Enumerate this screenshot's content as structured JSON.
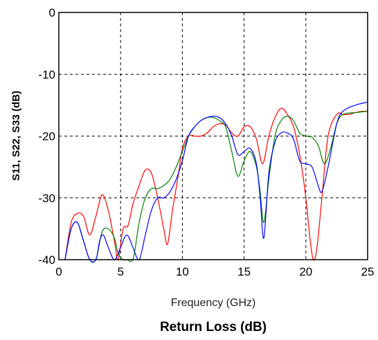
{
  "chart_data": {
    "type": "line",
    "title": "Return Loss (dB)",
    "xlabel": "Frequency (GHz)",
    "ylabel": "S11, S22, S33 (dB)",
    "xlim": [
      0,
      25
    ],
    "ylim": [
      -40,
      0
    ],
    "xticks": [
      "0",
      "5",
      "10",
      "15",
      "20",
      "25"
    ],
    "yticks": [
      "0",
      "-10",
      "-20",
      "-30",
      "-40"
    ],
    "grid": true,
    "legend": "none",
    "series": [
      {
        "color": "#ff0000",
        "x": [
          0.5,
          1.0,
          1.5,
          2.0,
          2.5,
          3.0,
          3.5,
          4.0,
          4.5,
          4.8,
          5.2,
          5.6,
          6.0,
          6.5,
          7.0,
          7.5,
          8.0,
          8.5,
          8.8,
          9.2,
          9.7,
          10.0,
          10.5,
          11.0,
          11.5,
          12.0,
          12.5,
          13.0,
          13.5,
          14.0,
          14.5,
          15.0,
          15.5,
          16.0,
          16.5,
          17.0,
          17.5,
          18.0,
          18.5,
          19.0,
          19.5,
          20.0,
          20.3,
          20.6,
          20.9,
          21.3,
          21.8,
          22.5,
          23.0,
          23.5,
          24.0,
          24.5,
          25.0
        ],
        "y": [
          -40,
          -34,
          -32.5,
          -33,
          -36,
          -33,
          -29.5,
          -32,
          -37,
          -40,
          -35,
          -34.5,
          -31,
          -28,
          -25.5,
          -26,
          -30,
          -35,
          -37.5,
          -32,
          -26,
          -22,
          -20,
          -20,
          -20,
          -19.5,
          -18.5,
          -18,
          -18.2,
          -19.5,
          -20,
          -18.5,
          -18.5,
          -20.5,
          -24.5,
          -20,
          -17,
          -15.5,
          -16.5,
          -18.5,
          -23,
          -30,
          -36,
          -40,
          -38,
          -30,
          -20,
          -16.5,
          -16.5,
          -16.5,
          -16.2,
          -16,
          -16
        ]
      },
      {
        "color": "#008000",
        "x": [
          0.5,
          1.0,
          1.5,
          2.0,
          2.5,
          3.0,
          3.5,
          4.0,
          4.5,
          4.8,
          5.2,
          5.5,
          6.0,
          6.5,
          7.0,
          7.5,
          8.0,
          8.5,
          9.0,
          9.5,
          10.0,
          10.5,
          11.0,
          11.5,
          12.0,
          12.5,
          13.0,
          13.5,
          14.0,
          14.5,
          15.0,
          15.5,
          16.0,
          16.3,
          16.6,
          17.0,
          17.5,
          18.0,
          18.5,
          19.0,
          19.5,
          20.0,
          20.5,
          21.0,
          21.5,
          22.0,
          22.5,
          23.0,
          24.0,
          25.0
        ],
        "y": [
          -40,
          -35,
          -34,
          -37,
          -40,
          -40,
          -35.5,
          -35,
          -36.5,
          -39,
          -40,
          -40,
          -40,
          -34,
          -30,
          -28.5,
          -28.5,
          -28,
          -27,
          -25,
          -22.5,
          -20,
          -18.5,
          -17.5,
          -17,
          -17,
          -17.5,
          -18.5,
          -22.5,
          -26.5,
          -24,
          -22.5,
          -25,
          -29,
          -34,
          -27,
          -20,
          -17.5,
          -16.8,
          -17.5,
          -19.5,
          -20,
          -20.2,
          -21.5,
          -24.5,
          -22,
          -18,
          -16.5,
          -16.2,
          -16
        ]
      },
      {
        "color": "#0000ff",
        "x": [
          0.5,
          1.0,
          1.5,
          2.0,
          2.5,
          3.0,
          3.3,
          3.6,
          4.0,
          4.5,
          5.0,
          5.5,
          6.0,
          6.5,
          7.0,
          7.5,
          8.0,
          8.5,
          9.0,
          9.5,
          10.0,
          10.5,
          11.0,
          11.5,
          12.0,
          12.5,
          13.0,
          13.5,
          14.0,
          14.5,
          15.0,
          15.5,
          16.0,
          16.3,
          16.6,
          17.0,
          17.5,
          18.0,
          18.5,
          19.0,
          19.5,
          20.0,
          20.5,
          21.0,
          21.3,
          21.8,
          22.5,
          23.0,
          24.0,
          25.0
        ],
        "y": [
          -40,
          -35,
          -34,
          -37,
          -40,
          -40,
          -37,
          -36,
          -38,
          -40,
          -38,
          -36,
          -38,
          -40,
          -36,
          -32,
          -30,
          -30,
          -29,
          -27,
          -24,
          -20,
          -18.5,
          -17.5,
          -17,
          -16.8,
          -17,
          -18,
          -20,
          -23,
          -22.5,
          -22,
          -24.5,
          -30,
          -36.5,
          -26,
          -21,
          -19.5,
          -19.5,
          -20.5,
          -24,
          -24.5,
          -25,
          -28,
          -29,
          -25,
          -18,
          -16,
          -15,
          -14.5
        ]
      }
    ]
  }
}
